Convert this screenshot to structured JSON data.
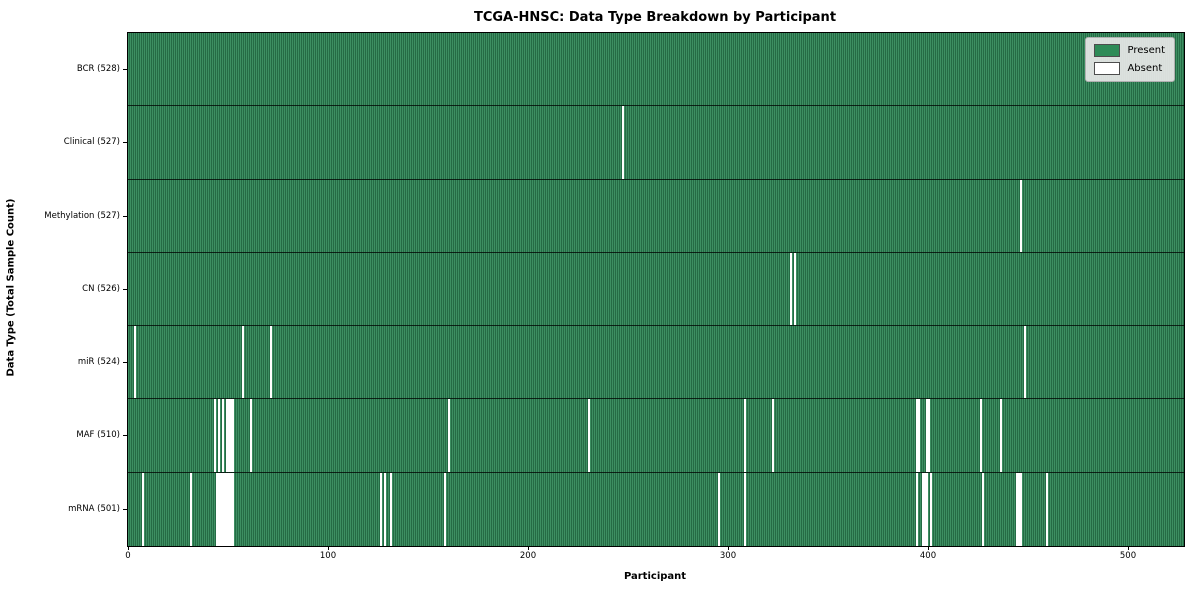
{
  "chart_data": {
    "type": "heatmap",
    "title": "TCGA-HNSC: Data Type Breakdown by Participant",
    "xlabel": "Participant",
    "ylabel": "Data Type (Total Sample Count)",
    "n_participants": 528,
    "x_ticks": [
      0,
      100,
      200,
      300,
      400,
      500
    ],
    "legend_position": "upper right",
    "grid": false,
    "rows": [
      {
        "label": "BCR (528)",
        "name": "BCR",
        "total": 528,
        "absent": []
      },
      {
        "label": "Clinical (527)",
        "name": "Clinical",
        "total": 527,
        "absent": [
          247
        ]
      },
      {
        "label": "Methylation (527)",
        "name": "Methylation",
        "total": 527,
        "absent": [
          446
        ]
      },
      {
        "label": "CN (526)",
        "name": "CN",
        "total": 526,
        "absent": [
          331,
          333
        ]
      },
      {
        "label": "miR (524)",
        "name": "miR",
        "total": 524,
        "absent": [
          3,
          57,
          71,
          448
        ]
      },
      {
        "label": "MAF (510)",
        "name": "MAF",
        "total": 510,
        "absent": [
          43,
          45,
          47,
          49,
          50,
          51,
          52,
          61,
          160,
          230,
          308,
          322,
          394,
          395,
          399,
          400,
          426,
          436
        ]
      },
      {
        "label": "mRNA (501)",
        "name": "mRNA",
        "total": 501,
        "absent": [
          7,
          31,
          44,
          45,
          46,
          47,
          48,
          49,
          50,
          51,
          52,
          126,
          128,
          131,
          158,
          295,
          308,
          394,
          397,
          398,
          399,
          401,
          427,
          444,
          445,
          446,
          459
        ]
      }
    ],
    "legend": [
      {
        "label": "Present",
        "color": "#2e8b57"
      },
      {
        "label": "Absent",
        "color": "#ffffff"
      }
    ],
    "colors": {
      "present": "#2e8b57",
      "present_stripe_dark": "#256b45",
      "absent": "#ffffff",
      "legend_bg": "#e8e8e8"
    }
  }
}
